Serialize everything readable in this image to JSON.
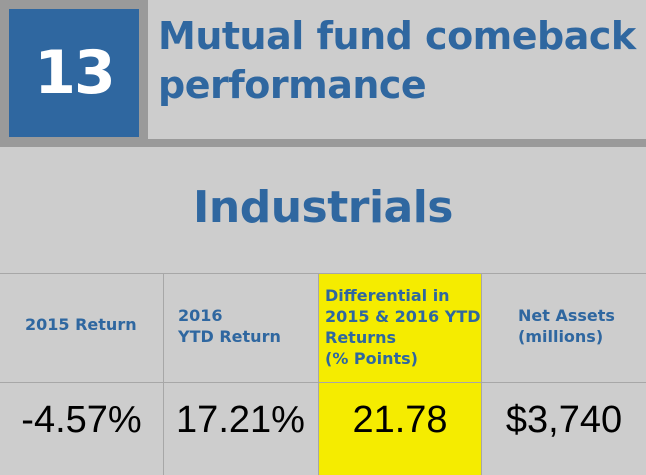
{
  "header": {
    "rank": "13",
    "title_line1": "Mutual fund comeback",
    "title_line2": "performance"
  },
  "section_title": "Industrials",
  "table": {
    "col1": {
      "header_lines": [
        "2015 Return"
      ],
      "value": "-4.57%"
    },
    "col2": {
      "header_lines": [
        "2016",
        "YTD Return"
      ],
      "value": "17.21%"
    },
    "col3": {
      "header_lines": [
        "Differential in",
        "2015 & 2016 YTD",
        "Returns",
        "(% Points)"
      ],
      "value": "21.78"
    },
    "col4": {
      "header_lines": [
        "Net Assets",
        "(millions)"
      ],
      "value": "$3,740"
    }
  },
  "colors": {
    "accent": "#2f67a0",
    "highlight": "#f5ec00",
    "background": "#cdcdcd",
    "frame": "#9a9a9a"
  }
}
